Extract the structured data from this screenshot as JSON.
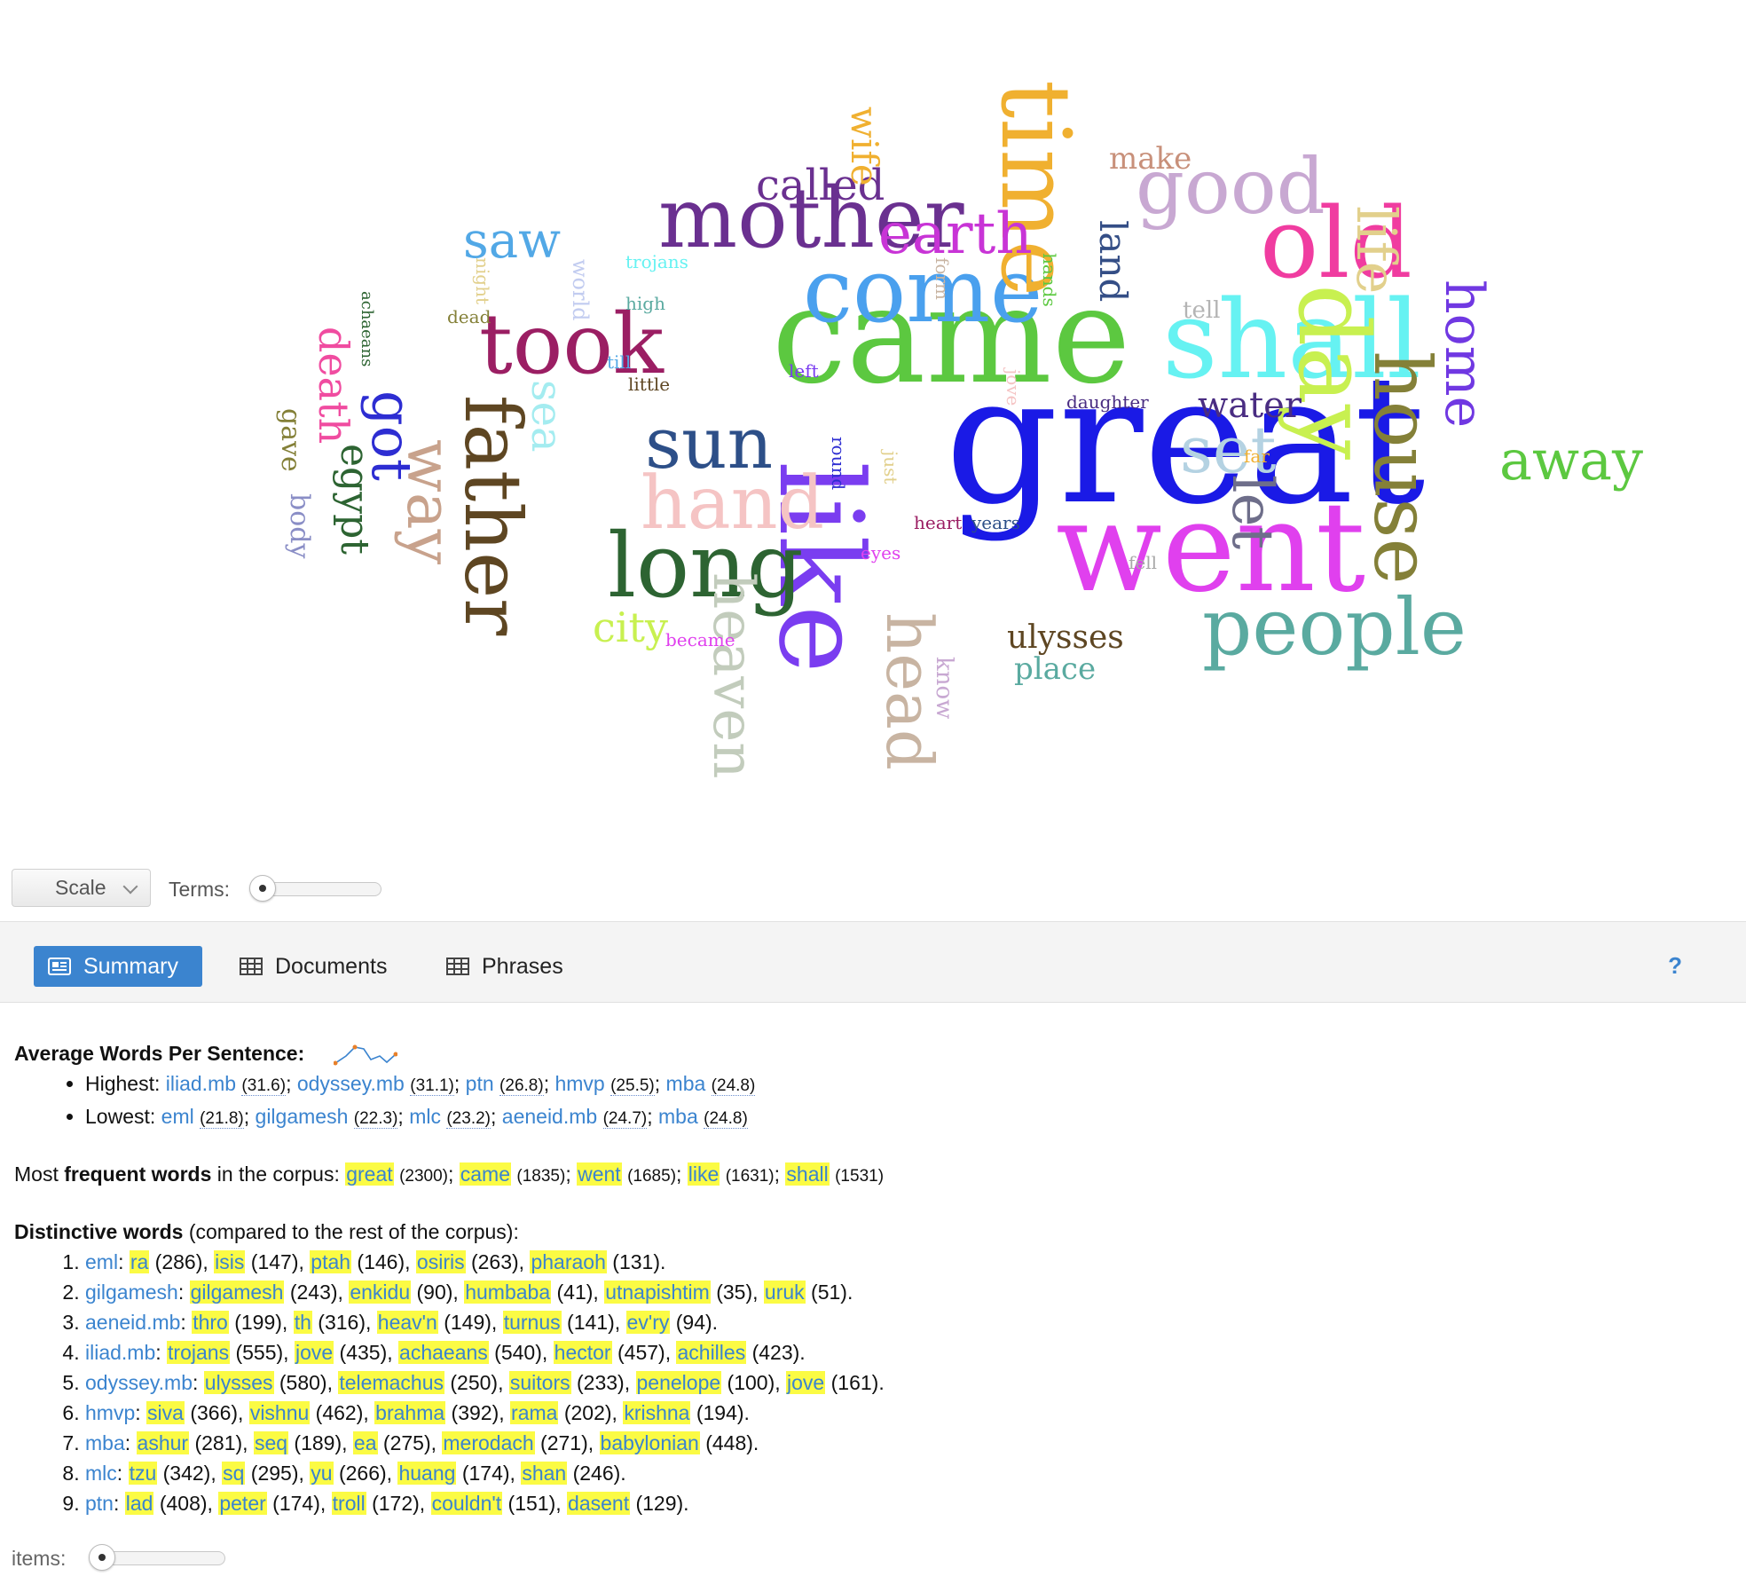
{
  "cloud": {
    "words": [
      {
        "text": "great",
        "color": "#1a1ae6"
      },
      {
        "text": "came",
        "color": "#5cc840"
      },
      {
        "text": "went",
        "color": "#e040ee"
      },
      {
        "text": "like",
        "color": "#7a3df0"
      },
      {
        "text": "shall",
        "color": "#66f2f2"
      },
      {
        "text": "come",
        "color": "#4aa0ee"
      },
      {
        "text": "mother",
        "color": "#6a3090"
      },
      {
        "text": "time",
        "color": "#f0b030"
      },
      {
        "text": "old",
        "color": "#f03ca0"
      },
      {
        "text": "day",
        "color": "#c8f050"
      },
      {
        "text": "took",
        "color": "#9b1e63"
      },
      {
        "text": "sun",
        "color": "#2d4f88"
      },
      {
        "text": "long",
        "color": "#2d6432"
      },
      {
        "text": "hand",
        "color": "#f5c4c4"
      },
      {
        "text": "father",
        "color": "#5e4622"
      },
      {
        "text": "good",
        "color": "#c8a8d2"
      },
      {
        "text": "people",
        "color": "#5aaaa0"
      },
      {
        "text": "house",
        "color": "#848038"
      },
      {
        "text": "earth",
        "color": "#c834d6"
      },
      {
        "text": "heaven",
        "color": "#c2ccbc"
      },
      {
        "text": "head",
        "color": "#c8b4a2"
      },
      {
        "text": "way",
        "color": "#c8a28c"
      },
      {
        "text": "set",
        "color": "#b4d2e2"
      },
      {
        "text": "let",
        "color": "#6e6e8a"
      },
      {
        "text": "away",
        "color": "#5cc840"
      },
      {
        "text": "home",
        "color": "#7038e2"
      },
      {
        "text": "life",
        "color": "#e2d08c"
      },
      {
        "text": "got",
        "color": "#2d2dd2"
      },
      {
        "text": "egypt",
        "color": "#2d6432"
      },
      {
        "text": "death",
        "color": "#f04ca0"
      },
      {
        "text": "sea",
        "color": "#a4ecf0"
      },
      {
        "text": "saw",
        "color": "#52a8e6"
      },
      {
        "text": "called",
        "color": "#6a3090"
      },
      {
        "text": "wife",
        "color": "#f0b030"
      },
      {
        "text": "make",
        "color": "#c8907a"
      },
      {
        "text": "land",
        "color": "#344e86"
      },
      {
        "text": "water",
        "color": "#4a2d82"
      },
      {
        "text": "ulysses",
        "color": "#5e4622"
      },
      {
        "text": "place",
        "color": "#5aaaa0"
      },
      {
        "text": "city",
        "color": "#c8f050"
      },
      {
        "text": "body",
        "color": "#8a8ec6"
      },
      {
        "text": "gave",
        "color": "#848038"
      },
      {
        "text": "know",
        "color": "#c8a8d2"
      },
      {
        "text": "became",
        "color": "#e040ee"
      },
      {
        "text": "round",
        "color": "#2d2dd2"
      },
      {
        "text": "daughter",
        "color": "#4a2d82"
      },
      {
        "text": "heart",
        "color": "#9b1e63"
      },
      {
        "text": "years",
        "color": "#2d4f88"
      },
      {
        "text": "eyes",
        "color": "#e040ee"
      },
      {
        "text": "fell",
        "color": "#a8a8a8"
      },
      {
        "text": "far",
        "color": "#f0b030"
      },
      {
        "text": "just",
        "color": "#e2d08c"
      },
      {
        "text": "jove",
        "color": "#f5c4c4"
      },
      {
        "text": "left",
        "color": "#7a3df0"
      },
      {
        "text": "little",
        "color": "#5e4622"
      },
      {
        "text": "till",
        "color": "#52a8e6"
      },
      {
        "text": "high",
        "color": "#5aaaa0"
      },
      {
        "text": "trojans",
        "color": "#66f2f2"
      },
      {
        "text": "world",
        "color": "#c2ccf0"
      },
      {
        "text": "night",
        "color": "#e2d08c"
      },
      {
        "text": "dead",
        "color": "#848038"
      },
      {
        "text": "achaeans",
        "color": "#2d6432"
      },
      {
        "text": "form",
        "color": "#c8b4a2"
      },
      {
        "text": "hands",
        "color": "#5cc840"
      },
      {
        "text": "tell",
        "color": "#b4b4b4"
      }
    ]
  },
  "toolbar": {
    "scale_label": "Scale",
    "terms_label": "Terms:",
    "terms_slider_value": 0.05
  },
  "tabs": {
    "summary": "Summary",
    "documents": "Documents",
    "phrases": "Phrases",
    "help": "?"
  },
  "summary": {
    "awps_title": "Average Words Per Sentence:",
    "highest_label": "Highest:",
    "lowest_label": "Lowest:",
    "highest": [
      {
        "name": "iliad.mb",
        "value": "(31.6)"
      },
      {
        "name": "odyssey.mb",
        "value": "(31.1)"
      },
      {
        "name": "ptn",
        "value": "(26.8)"
      },
      {
        "name": "hmvp",
        "value": "(25.5)"
      },
      {
        "name": "mba",
        "value": "(24.8)"
      }
    ],
    "lowest": [
      {
        "name": "eml",
        "value": "(21.8)"
      },
      {
        "name": "gilgamesh",
        "value": "(22.3)"
      },
      {
        "name": "mlc",
        "value": "(23.2)"
      },
      {
        "name": "aeneid.mb",
        "value": "(24.7)"
      },
      {
        "name": "mba",
        "value": "(24.8)"
      }
    ],
    "frequent_prefix": "Most",
    "frequent_bold": "frequent words",
    "frequent_suffix": "in the corpus:",
    "frequent": [
      {
        "word": "great",
        "count": "(2300)"
      },
      {
        "word": "came",
        "count": "(1835)"
      },
      {
        "word": "went",
        "count": "(1685)"
      },
      {
        "word": "like",
        "count": "(1631)"
      },
      {
        "word": "shall",
        "count": "(1531)"
      }
    ],
    "distinctive_bold": "Distinctive words",
    "distinctive_suffix": "(compared to the rest of the corpus):",
    "distinctive": [
      {
        "doc": "eml",
        "words": [
          [
            "ra",
            "(286)"
          ],
          [
            "isis",
            "(147)"
          ],
          [
            "ptah",
            "(146)"
          ],
          [
            "osiris",
            "(263)"
          ],
          [
            "pharaoh",
            "(131)"
          ]
        ]
      },
      {
        "doc": "gilgamesh",
        "words": [
          [
            "gilgamesh",
            "(243)"
          ],
          [
            "enkidu",
            "(90)"
          ],
          [
            "humbaba",
            "(41)"
          ],
          [
            "utnapishtim",
            "(35)"
          ],
          [
            "uruk",
            "(51)"
          ]
        ]
      },
      {
        "doc": "aeneid.mb",
        "words": [
          [
            "thro",
            "(199)"
          ],
          [
            "th",
            "(316)"
          ],
          [
            "heav'n",
            "(149)"
          ],
          [
            "turnus",
            "(141)"
          ],
          [
            "ev'ry",
            "(94)"
          ]
        ]
      },
      {
        "doc": "iliad.mb",
        "words": [
          [
            "trojans",
            "(555)"
          ],
          [
            "jove",
            "(435)"
          ],
          [
            "achaeans",
            "(540)"
          ],
          [
            "hector",
            "(457)"
          ],
          [
            "achilles",
            "(423)"
          ]
        ]
      },
      {
        "doc": "odyssey.mb",
        "words": [
          [
            "ulysses",
            "(580)"
          ],
          [
            "telemachus",
            "(250)"
          ],
          [
            "suitors",
            "(233)"
          ],
          [
            "penelope",
            "(100)"
          ],
          [
            "jove",
            "(161)"
          ]
        ]
      },
      {
        "doc": "hmvp",
        "words": [
          [
            "siva",
            "(366)"
          ],
          [
            "vishnu",
            "(462)"
          ],
          [
            "brahma",
            "(392)"
          ],
          [
            "rama",
            "(202)"
          ],
          [
            "krishna",
            "(194)"
          ]
        ]
      },
      {
        "doc": "mba",
        "words": [
          [
            "ashur",
            "(281)"
          ],
          [
            "seq",
            "(189)"
          ],
          [
            "ea",
            "(275)"
          ],
          [
            "merodach",
            "(271)"
          ],
          [
            "babylonian",
            "(448)"
          ]
        ]
      },
      {
        "doc": "mlc",
        "words": [
          [
            "tzu",
            "(342)"
          ],
          [
            "sq",
            "(295)"
          ],
          [
            "yu",
            "(266)"
          ],
          [
            "huang",
            "(174)"
          ],
          [
            "shan",
            "(246)"
          ]
        ]
      },
      {
        "doc": "ptn",
        "words": [
          [
            "lad",
            "(408)"
          ],
          [
            "peter",
            "(174)"
          ],
          [
            "troll",
            "(172)"
          ],
          [
            "couldn't",
            "(151)"
          ],
          [
            "dasent",
            "(129)"
          ]
        ]
      }
    ]
  },
  "footer": {
    "items_label": "items:",
    "items_slider_value": 0.05
  }
}
